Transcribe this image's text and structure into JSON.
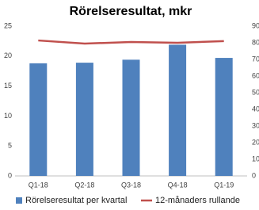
{
  "chart_data": {
    "type": "bar",
    "title": "Rörelseresultat, mkr",
    "categories": [
      "Q1-18",
      "Q2-18",
      "Q3-18",
      "Q4-18",
      "Q1-19"
    ],
    "series": [
      {
        "name": "Rörelseresultat per kvartal",
        "color": "#4f81bd",
        "values": [
          18.8,
          18.9,
          19.4,
          21.9,
          19.7
        ]
      },
      {
        "name": "12-månaders rullande",
        "color": "#c0504d",
        "axis": "y2",
        "type": "line",
        "values": [
          81.4,
          79.5,
          80.5,
          80,
          81
        ]
      }
    ],
    "ylim": [
      0,
      25
    ],
    "yticks": [
      0,
      5,
      10,
      15,
      20,
      25
    ],
    "y2lim": [
      0,
      90
    ],
    "y2ticks": [
      0,
      10,
      20,
      30,
      40,
      50,
      60,
      70,
      80,
      90
    ],
    "grid": false
  }
}
